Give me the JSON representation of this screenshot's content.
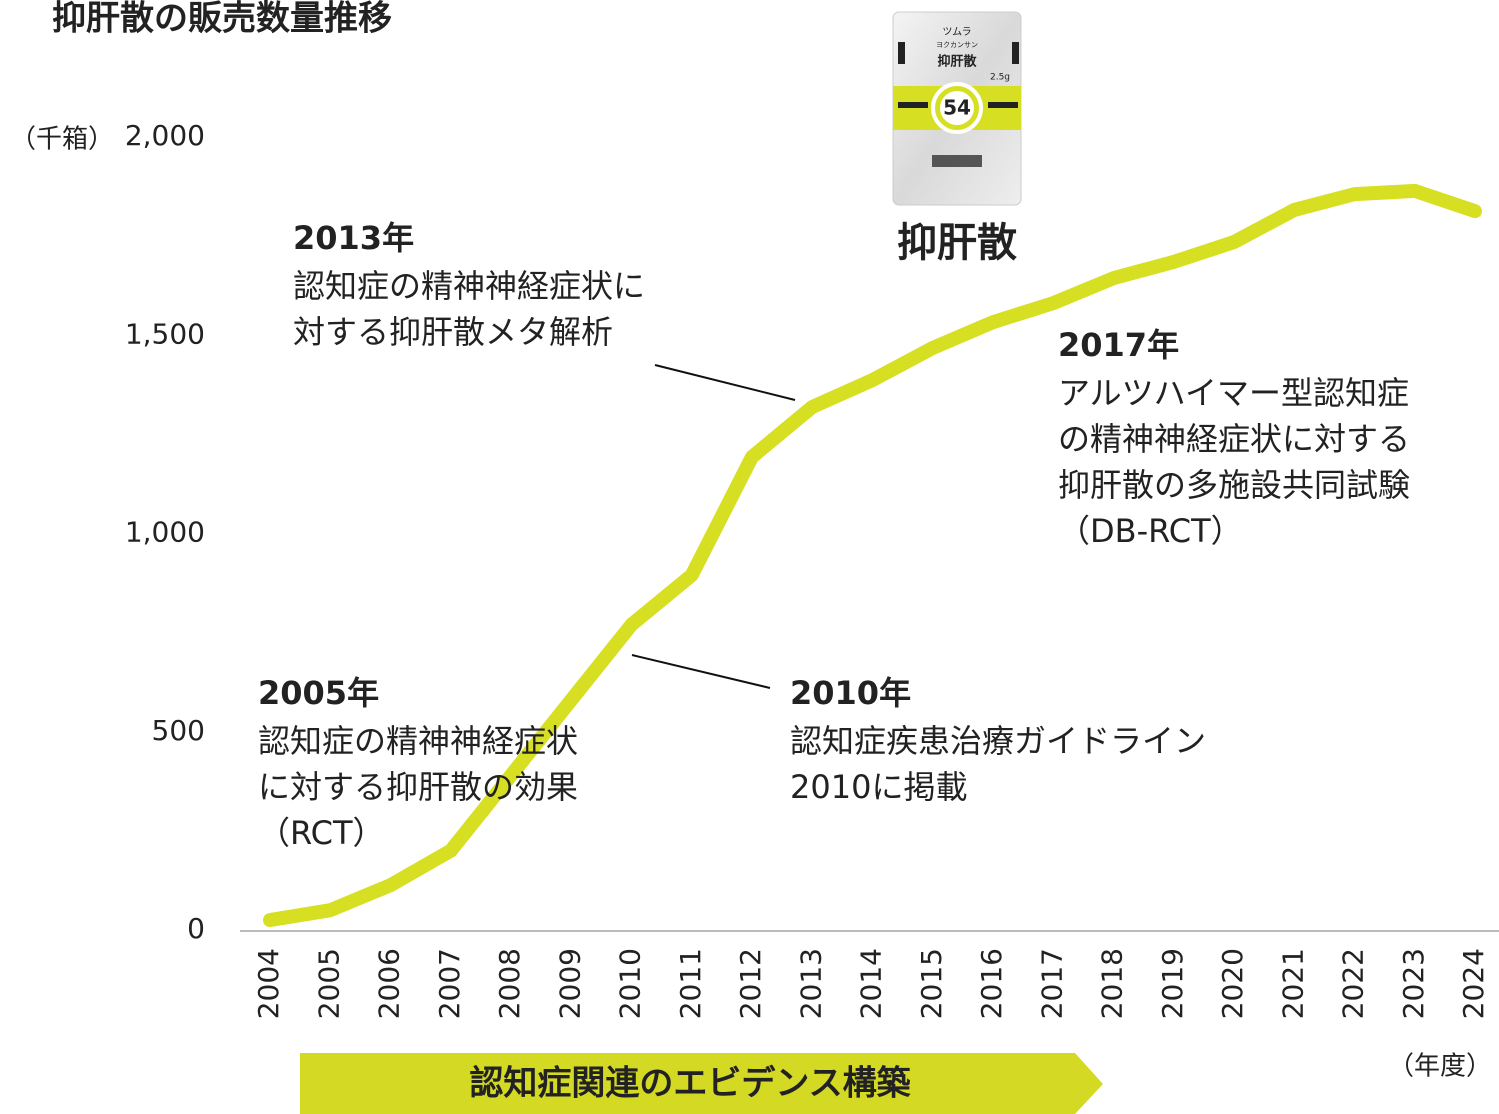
{
  "chart_data": {
    "type": "line",
    "title": "抑肝散の販売数量推移",
    "y_unit": "（千箱）",
    "x_unit": "（年度）",
    "categories": [
      "2004",
      "2005",
      "2006",
      "2007",
      "2008",
      "2009",
      "2010",
      "2011",
      "2012",
      "2013",
      "2014",
      "2015",
      "2016",
      "2017",
      "2018",
      "2019",
      "2020",
      "2021",
      "2022",
      "2023",
      "2024"
    ],
    "values": [
      25,
      50,
      113,
      200,
      390,
      580,
      770,
      895,
      1193,
      1319,
      1387,
      1468,
      1533,
      1581,
      1644,
      1685,
      1735,
      1816,
      1856,
      1864,
      1813
    ],
    "color": "#d7df23",
    "ylim": [
      0,
      2000
    ],
    "yticks": [
      0,
      500,
      {
        "value": 1000,
        "label": "1,000"
      },
      {
        "value": 1500,
        "label": "1,500"
      },
      {
        "value": 2000,
        "label": "2,000"
      }
    ],
    "grid": false,
    "annotations": [
      {
        "year": "2005年",
        "lines": [
          "認知症の精神神経症状",
          "に対する抑肝散の効果",
          "（RCT）"
        ]
      },
      {
        "year": "2010年",
        "lines": [
          "認知症疾患治療ガイドライン",
          "2010に掲載"
        ]
      },
      {
        "year": "2013年",
        "lines": [
          "認知症の精神神経症状に",
          "対する抑肝散メタ解析"
        ]
      },
      {
        "year": "2017年",
        "lines": [
          "アルツハイマー型認知症",
          "の精神神経症状に対する",
          "抑肝散の多施設共同試験",
          "（DB-RCT）"
        ]
      }
    ],
    "product": {
      "maker": "ツムラ",
      "reading": "ヨクカンサン",
      "name": "抑肝散",
      "dose": "2.5g",
      "number": "54",
      "label": "抑肝散"
    },
    "banner": "認知症関連のエビデンス構築"
  }
}
